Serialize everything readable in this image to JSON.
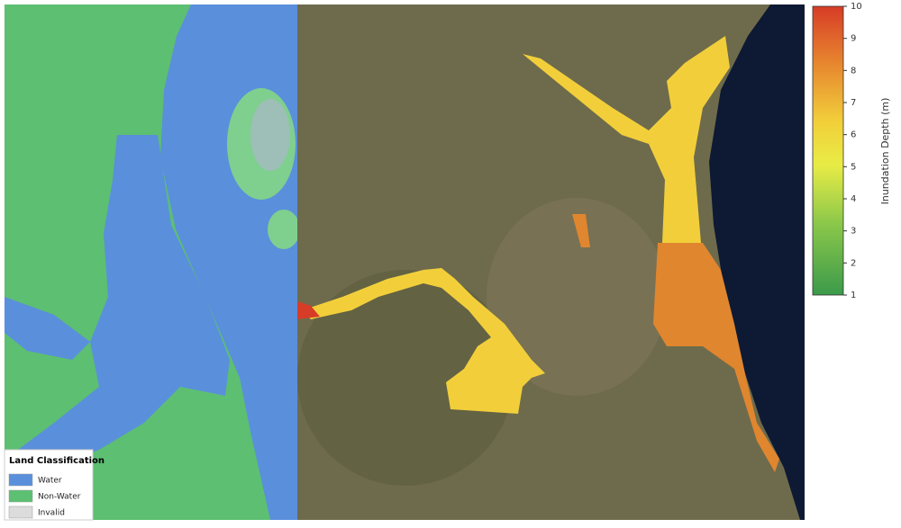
{
  "legend": {
    "title": "Land Classification",
    "items": [
      {
        "label": "Water",
        "color": "#5a8fdc"
      },
      {
        "label": "Non-Water",
        "color": "#5cbf72"
      },
      {
        "label": "Invalid",
        "color": "#dcdcdc"
      }
    ]
  },
  "colorbar": {
    "label": "Inundation Depth (m)",
    "lim": [
      1,
      10
    ],
    "ticks": [
      1,
      2,
      3,
      4,
      5,
      6,
      7,
      8,
      9,
      10
    ]
  }
}
